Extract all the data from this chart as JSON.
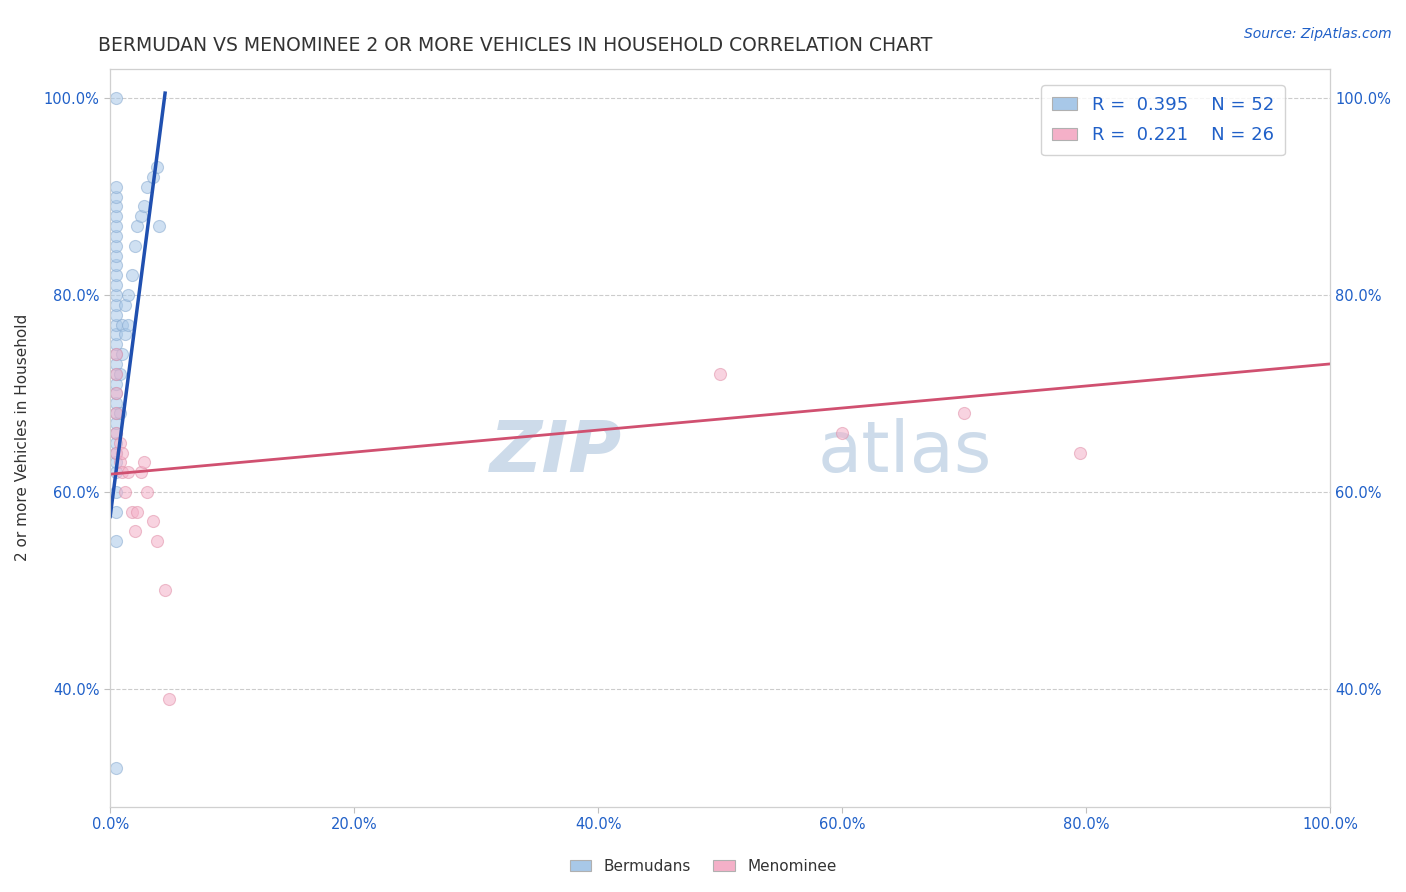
{
  "title": "BERMUDAN VS MENOMINEE 2 OR MORE VEHICLES IN HOUSEHOLD CORRELATION CHART",
  "source": "Source: ZipAtlas.com",
  "ylabel": "2 or more Vehicles in Household",
  "watermark_top": "ZIP",
  "watermark_bot": "atlas",
  "xmin": 0.0,
  "xmax": 1.0,
  "ymin": 0.28,
  "ymax": 1.03,
  "x_ticks": [
    0.0,
    0.2,
    0.4,
    0.6,
    0.8,
    1.0
  ],
  "x_tick_labels": [
    "0.0%",
    "20.0%",
    "40.0%",
    "60.0%",
    "80.0%",
    "100.0%"
  ],
  "y_ticks": [
    0.4,
    0.6,
    0.8,
    1.0
  ],
  "y_tick_labels": [
    "40.0%",
    "60.0%",
    "80.0%",
    "100.0%"
  ],
  "legend_R1": "0.395",
  "legend_N1": "52",
  "legend_R2": "0.221",
  "legend_N2": "26",
  "blue_scatter_x": [
    0.005,
    0.005,
    0.005,
    0.005,
    0.005,
    0.005,
    0.005,
    0.005,
    0.005,
    0.005,
    0.005,
    0.005,
    0.005,
    0.005,
    0.005,
    0.005,
    0.005,
    0.005,
    0.005,
    0.005,
    0.005,
    0.005,
    0.005,
    0.005,
    0.005,
    0.005,
    0.005,
    0.005,
    0.005,
    0.005,
    0.005,
    0.005,
    0.005,
    0.005,
    0.008,
    0.008,
    0.01,
    0.01,
    0.012,
    0.012,
    0.015,
    0.015,
    0.018,
    0.02,
    0.022,
    0.025,
    0.028,
    0.03,
    0.035,
    0.038,
    0.005,
    0.04
  ],
  "blue_scatter_y": [
    0.32,
    0.55,
    0.58,
    0.6,
    0.62,
    0.63,
    0.64,
    0.65,
    0.66,
    0.67,
    0.68,
    0.69,
    0.7,
    0.71,
    0.72,
    0.73,
    0.74,
    0.75,
    0.76,
    0.77,
    0.78,
    0.79,
    0.8,
    0.81,
    0.82,
    0.83,
    0.84,
    0.85,
    0.86,
    0.87,
    0.88,
    0.89,
    0.9,
    0.91,
    0.68,
    0.72,
    0.74,
    0.77,
    0.76,
    0.79,
    0.77,
    0.8,
    0.82,
    0.85,
    0.87,
    0.88,
    0.89,
    0.91,
    0.92,
    0.93,
    1.0,
    0.87
  ],
  "pink_scatter_x": [
    0.005,
    0.005,
    0.005,
    0.005,
    0.005,
    0.005,
    0.008,
    0.008,
    0.01,
    0.01,
    0.012,
    0.015,
    0.018,
    0.02,
    0.022,
    0.025,
    0.028,
    0.03,
    0.035,
    0.038,
    0.045,
    0.048,
    0.5,
    0.6,
    0.7,
    0.795
  ],
  "pink_scatter_y": [
    0.64,
    0.66,
    0.68,
    0.7,
    0.72,
    0.74,
    0.63,
    0.65,
    0.62,
    0.64,
    0.6,
    0.62,
    0.58,
    0.56,
    0.58,
    0.62,
    0.63,
    0.6,
    0.57,
    0.55,
    0.5,
    0.39,
    0.72,
    0.66,
    0.68,
    0.64
  ],
  "blue_line_x": [
    0.0,
    0.045
  ],
  "blue_line_y": [
    0.575,
    1.005
  ],
  "pink_line_x": [
    0.0,
    1.0
  ],
  "pink_line_y": [
    0.618,
    0.73
  ],
  "scatter_size": 75,
  "scatter_alpha": 0.55,
  "blue_dot_color": "#a8c8e8",
  "pink_dot_color": "#f4b0c8",
  "blue_edge_color": "#88aad0",
  "pink_edge_color": "#e090a8",
  "blue_line_color": "#2050b0",
  "pink_line_color": "#d05070",
  "legend_text_color": "#2060c8",
  "title_color": "#333333",
  "title_fontsize": 13.5,
  "axis_label_fontsize": 11,
  "tick_fontsize": 10.5,
  "source_fontsize": 10,
  "watermark_fontsize": 52,
  "watermark_color": "#c8d8e8",
  "background_color": "#ffffff",
  "grid_color": "#cccccc",
  "legend_blue_color": "#a8c8e8",
  "legend_pink_color": "#f4b0c8"
}
